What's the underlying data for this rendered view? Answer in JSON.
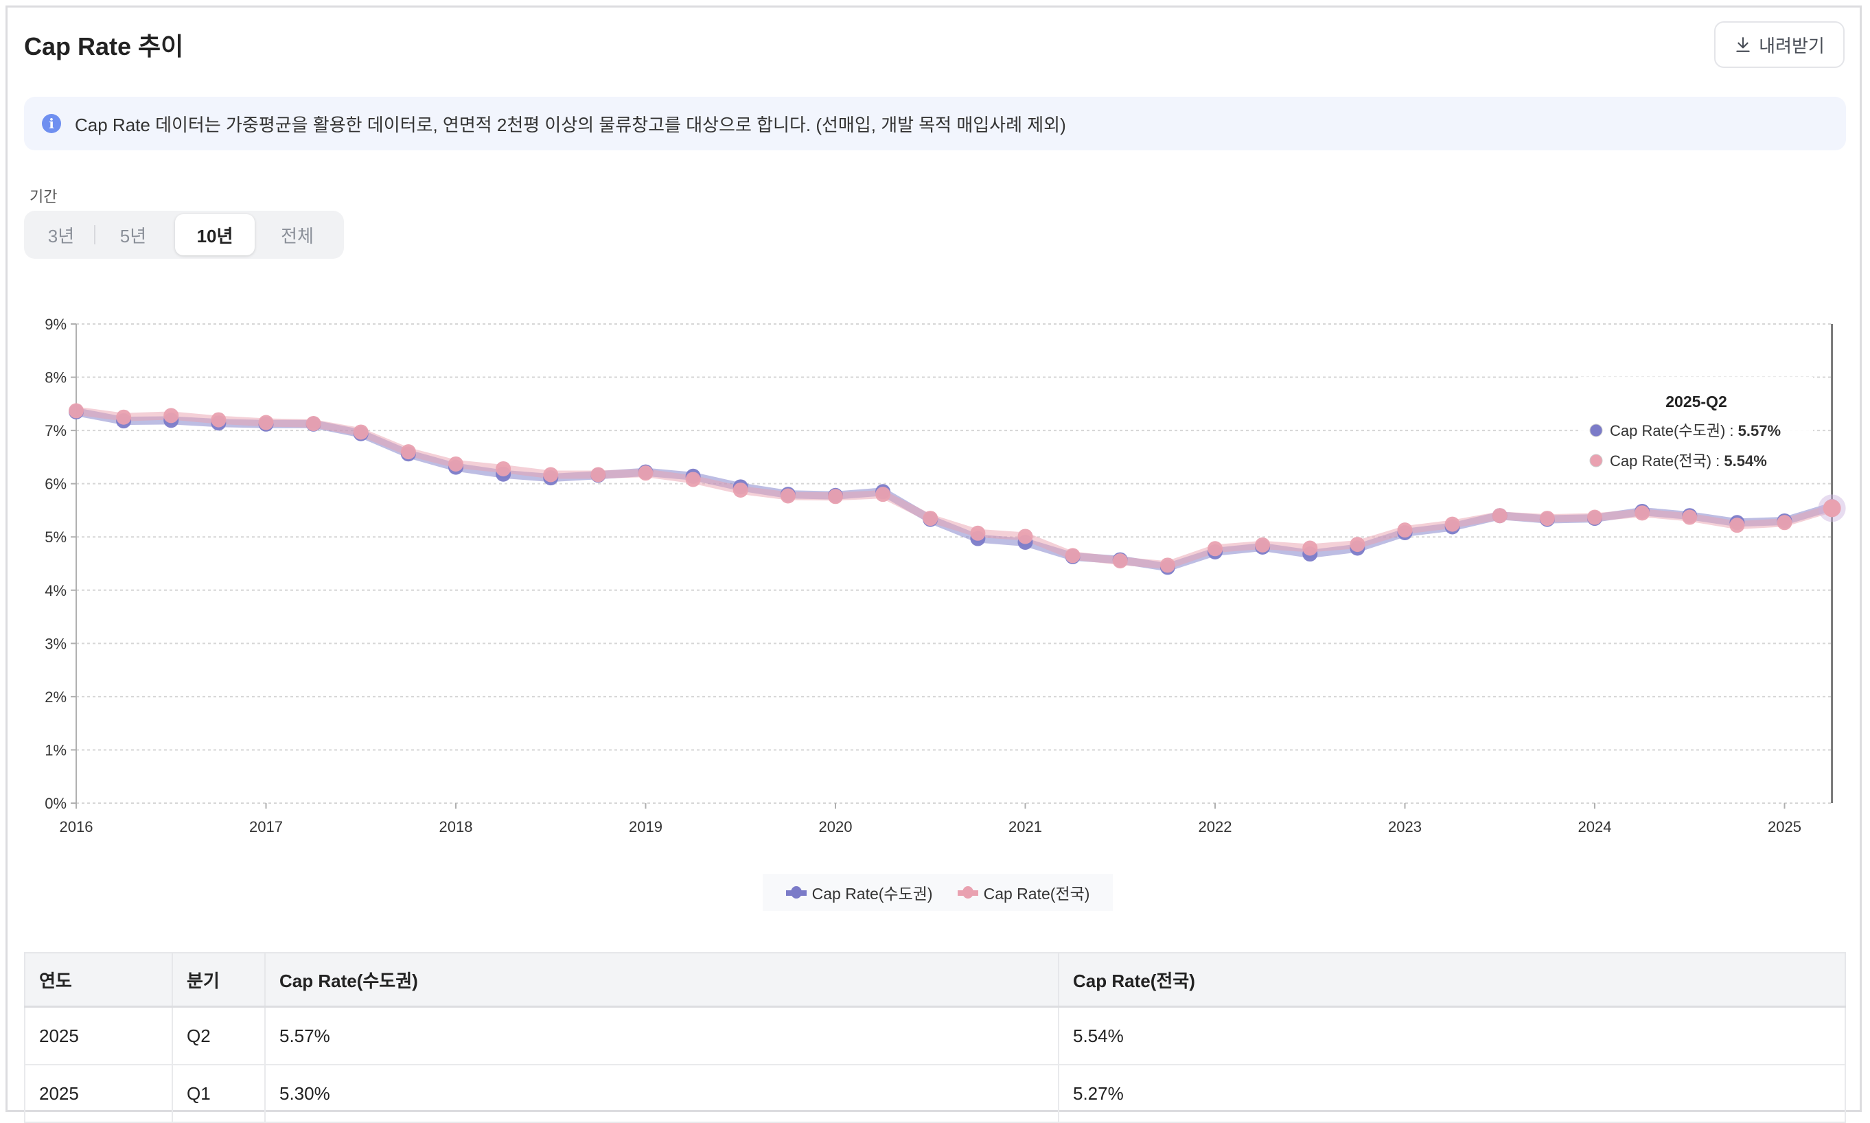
{
  "header": {
    "title": "Cap Rate 추이",
    "download_label": "내려받기"
  },
  "info": {
    "icon": "info-icon",
    "text": "Cap Rate 데이터는 가중평균을 활용한 데이터로, 연면적 2천평 이상의 물류창고를 대상으로 합니다. (선매입, 개발 목적 매입사례 제외)"
  },
  "period": {
    "label": "기간",
    "options": [
      "3년",
      "5년",
      "10년",
      "전체"
    ],
    "selected": "10년"
  },
  "tooltip": {
    "title": "2025-Q2",
    "rows": [
      {
        "label": "Cap Rate(수도권) : ",
        "value": "5.57%"
      },
      {
        "label": "Cap Rate(전국) : ",
        "value": "5.54%"
      }
    ]
  },
  "colors": {
    "metro": "#7b7bc8",
    "national": "#e9a1b0"
  },
  "chart_data": {
    "type": "line",
    "title": "Cap Rate 추이",
    "xlabel": "",
    "ylabel": "",
    "ylim": [
      0,
      9
    ],
    "y_ticks": [
      "0%",
      "1%",
      "2%",
      "3%",
      "4%",
      "5%",
      "6%",
      "7%",
      "8%",
      "9%"
    ],
    "x_ticks": [
      "2016",
      "2017",
      "2018",
      "2019",
      "2020",
      "2021",
      "2022",
      "2023",
      "2024",
      "2025"
    ],
    "grid": true,
    "legend": "bottom",
    "x": [
      "2016-Q1",
      "2016-Q2",
      "2016-Q3",
      "2016-Q4",
      "2017-Q1",
      "2017-Q2",
      "2017-Q3",
      "2017-Q4",
      "2018-Q1",
      "2018-Q2",
      "2018-Q3",
      "2018-Q4",
      "2019-Q1",
      "2019-Q2",
      "2019-Q3",
      "2019-Q4",
      "2020-Q1",
      "2020-Q2",
      "2020-Q3",
      "2020-Q4",
      "2021-Q1",
      "2021-Q2",
      "2021-Q3",
      "2021-Q4",
      "2022-Q1",
      "2022-Q2",
      "2022-Q3",
      "2022-Q4",
      "2023-Q1",
      "2023-Q2",
      "2023-Q3",
      "2023-Q4",
      "2024-Q1",
      "2024-Q2",
      "2024-Q3",
      "2024-Q4",
      "2025-Q1",
      "2025-Q2"
    ],
    "series": [
      {
        "name": "Cap Rate(수도권)",
        "values": [
          7.35,
          7.18,
          7.19,
          7.14,
          7.12,
          7.12,
          6.94,
          6.56,
          6.31,
          6.18,
          6.11,
          6.16,
          6.22,
          6.14,
          5.94,
          5.8,
          5.78,
          5.85,
          5.33,
          4.97,
          4.9,
          4.63,
          4.57,
          4.43,
          4.72,
          4.81,
          4.68,
          4.79,
          5.08,
          5.19,
          5.4,
          5.33,
          5.35,
          5.48,
          5.4,
          5.27,
          5.3,
          5.57
        ]
      },
      {
        "name": "Cap Rate(전국)",
        "values": [
          7.37,
          7.25,
          7.28,
          7.2,
          7.15,
          7.13,
          6.97,
          6.6,
          6.37,
          6.28,
          6.17,
          6.17,
          6.2,
          6.08,
          5.88,
          5.77,
          5.76,
          5.8,
          5.35,
          5.07,
          5.01,
          4.65,
          4.55,
          4.47,
          4.78,
          4.85,
          4.79,
          4.86,
          5.13,
          5.24,
          5.4,
          5.35,
          5.37,
          5.45,
          5.37,
          5.22,
          5.27,
          5.54
        ]
      }
    ],
    "highlight": "2025-Q2"
  },
  "legend": {
    "items": [
      "Cap Rate(수도권)",
      "Cap Rate(전국)"
    ]
  },
  "table": {
    "headers": [
      "연도",
      "분기",
      "Cap Rate(수도권)",
      "Cap Rate(전국)"
    ],
    "rows": [
      [
        "2025",
        "Q2",
        "5.57%",
        "5.54%"
      ],
      [
        "2025",
        "Q1",
        "5.30%",
        "5.27%"
      ]
    ]
  }
}
